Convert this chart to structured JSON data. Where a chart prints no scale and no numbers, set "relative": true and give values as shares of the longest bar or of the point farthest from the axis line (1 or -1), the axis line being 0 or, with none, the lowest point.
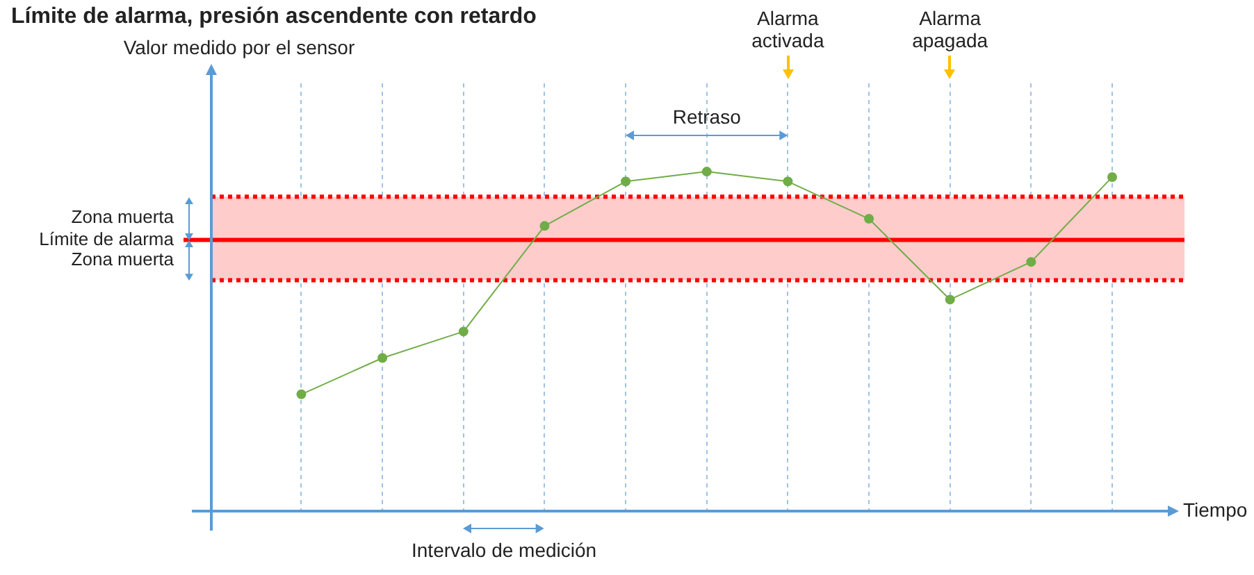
{
  "chart_data": {
    "type": "line",
    "title": "Límite de alarma, presión ascendente con retardo",
    "xlabel": "Tiempo",
    "relative": true,
    "categories": [
      null,
      null,
      null,
      null,
      null,
      null,
      null,
      null,
      null,
      null,
      null
    ],
    "series": [
      {
        "color": "#70ad47",
        "values": [
          0.344,
          0.451,
          0.529,
          0.84,
          0.971,
          1,
          0.971,
          0.861,
          0.623,
          0.734,
          0.984
        ]
      }
    ],
    "bands": [
      {
        "axis": "y",
        "from": 0.68,
        "to": 0.799,
        "label": "Zona muerta",
        "color": "#ffcccc"
      },
      {
        "axis": "y",
        "from": 0.799,
        "to": 0.926,
        "label": "Zona muerta",
        "color": "#ffcccc"
      }
    ],
    "ref_lines": [
      {
        "axis": "y",
        "value": 0.799,
        "label": "Límite de alarma",
        "color": "#ff0000",
        "line_style": "solid"
      },
      {
        "axis": "y",
        "value": 0.68,
        "color": "#ff0000",
        "line_style": "dotted"
      },
      {
        "axis": "y",
        "value": 0.926,
        "color": "#ff0000",
        "line_style": "dotted"
      }
    ],
    "annotations": [
      "Alarma activada",
      "Alarma apagada",
      "Retraso",
      "Intervalo de medición",
      "Valor medido por el sensor"
    ],
    "grid": "x",
    "legend": false,
    "marker": "circle",
    "line_style": "solid"
  }
}
